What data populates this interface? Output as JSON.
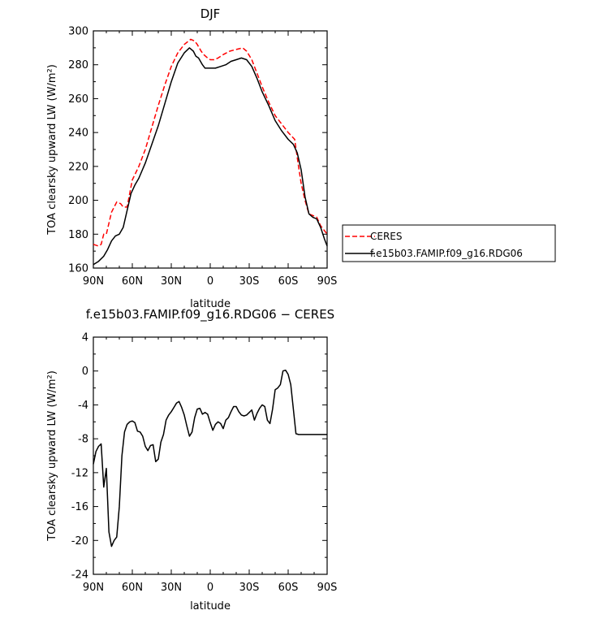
{
  "chart_data": [
    {
      "type": "line",
      "title": "DJF",
      "xlabel": "latitude",
      "ylabel": "TOA clearsky upward LW (W/m²)",
      "xlim": [
        -90,
        90
      ],
      "ylim": [
        160,
        300
      ],
      "x_ticks": [
        -90,
        -60,
        -30,
        0,
        30,
        60,
        90
      ],
      "x_tick_labels": [
        "90N",
        "60N",
        "30N",
        "0",
        "30S",
        "60S",
        "90S"
      ],
      "y_ticks": [
        160,
        180,
        200,
        220,
        240,
        260,
        280,
        300
      ],
      "y_tick_labels": [
        "160",
        "180",
        "200",
        "220",
        "240",
        "260",
        "280",
        "300"
      ],
      "legend": "right",
      "series": [
        {
          "name": "CERES",
          "color": "#ff0000",
          "style": "dashed",
          "x": [
            -90,
            -86,
            -84,
            -82,
            -80,
            -76,
            -72,
            -69,
            -67,
            -64,
            -62,
            -60,
            -55,
            -50,
            -45,
            -40,
            -35,
            -30,
            -25,
            -20,
            -15,
            -12,
            -10,
            -7,
            -5,
            -2,
            0,
            3,
            6,
            10,
            15,
            20,
            25,
            28,
            32,
            36,
            40,
            45,
            50,
            55,
            60,
            65,
            68,
            70,
            73,
            76,
            79,
            82,
            85,
            88,
            90
          ],
          "y": [
            174,
            173,
            174,
            180,
            180,
            193,
            199,
            198,
            196,
            196,
            204,
            212,
            220,
            230,
            243,
            256,
            268,
            279,
            287,
            292,
            295,
            294,
            292,
            288,
            286,
            284,
            283,
            283,
            284,
            286,
            288,
            289,
            290,
            288,
            283,
            275,
            267,
            258,
            250,
            245,
            240,
            236,
            220,
            210,
            200,
            192,
            191,
            190,
            185,
            182,
            180
          ]
        },
        {
          "name": "f.e15b03.FAMIP.f09_g16.RDG06",
          "color": "#000000",
          "style": "solid",
          "x": [
            -90,
            -86,
            -82,
            -79,
            -76,
            -73,
            -70,
            -67,
            -64,
            -61,
            -58,
            -55,
            -50,
            -45,
            -40,
            -35,
            -30,
            -25,
            -20,
            -16,
            -13,
            -11,
            -9,
            -6,
            -4,
            -2,
            0,
            4,
            8,
            12,
            16,
            20,
            24,
            28,
            32,
            36,
            40,
            45,
            50,
            55,
            60,
            64,
            67,
            70,
            73,
            76,
            79,
            82,
            85,
            88,
            90
          ],
          "y": [
            162,
            164,
            167,
            171,
            176,
            179,
            180,
            184,
            194,
            204,
            209,
            213,
            222,
            233,
            244,
            257,
            270,
            281,
            287,
            290,
            288,
            285,
            284,
            280,
            278,
            278,
            278,
            278,
            279,
            280,
            282,
            283,
            284,
            283,
            279,
            272,
            264,
            256,
            247,
            241,
            236,
            233,
            228,
            218,
            202,
            192,
            190,
            189,
            184,
            177,
            173
          ]
        }
      ]
    },
    {
      "type": "line",
      "title": "f.e15b03.FAMIP.f09_g16.RDG06 − CERES",
      "xlabel": "latitude",
      "ylabel": "TOA clearsky upward LW (W/m²)",
      "xlim": [
        -90,
        90
      ],
      "ylim": [
        -24,
        4
      ],
      "x_ticks": [
        -90,
        -60,
        -30,
        0,
        30,
        60,
        90
      ],
      "x_tick_labels": [
        "90N",
        "60N",
        "30N",
        "0",
        "30S",
        "60S",
        "90S"
      ],
      "y_ticks": [
        -24,
        -20,
        -16,
        -12,
        -8,
        -4,
        0,
        4
      ],
      "y_tick_labels": [
        "-24",
        "-20",
        "-16",
        "-12",
        "-8",
        "-4",
        "0",
        "4"
      ],
      "series": [
        {
          "name": "f.e15b03.FAMIP.f09_g16.RDG06 − CERES",
          "color": "#000000",
          "style": "solid",
          "x": [
            -90,
            -88,
            -86,
            -84,
            -82,
            -80,
            -78,
            -76,
            -74,
            -72,
            -70,
            -68,
            -66,
            -64,
            -62,
            -60,
            -58,
            -56,
            -54,
            -52,
            -50,
            -48,
            -46,
            -44,
            -42,
            -40,
            -38,
            -36,
            -34,
            -32,
            -30,
            -28,
            -26,
            -24,
            -22,
            -20,
            -18,
            -16,
            -14,
            -12,
            -10,
            -8,
            -6,
            -4,
            -2,
            0,
            2,
            4,
            6,
            8,
            10,
            12,
            14,
            16,
            18,
            20,
            22,
            24,
            26,
            28,
            30,
            32,
            34,
            36,
            38,
            40,
            42,
            44,
            46,
            48,
            50,
            52,
            54,
            56,
            58,
            60,
            62,
            64,
            66,
            68,
            70,
            72,
            74,
            76,
            78,
            80,
            82,
            84,
            86,
            88,
            90
          ],
          "y": [
            -11.0,
            -9.5,
            -8.9,
            -8.6,
            -13.7,
            -11.5,
            -19.0,
            -20.7,
            -20.0,
            -19.6,
            -16.0,
            -10.0,
            -7.2,
            -6.3,
            -6.0,
            -5.9,
            -6.1,
            -7.1,
            -7.2,
            -7.7,
            -8.9,
            -9.4,
            -8.8,
            -8.7,
            -10.7,
            -10.4,
            -8.4,
            -7.5,
            -5.8,
            -5.2,
            -4.8,
            -4.3,
            -3.8,
            -3.6,
            -4.3,
            -5.2,
            -6.5,
            -7.7,
            -7.2,
            -5.5,
            -4.5,
            -4.4,
            -5.1,
            -4.9,
            -5.1,
            -6.1,
            -7.0,
            -6.3,
            -6.0,
            -6.2,
            -6.8,
            -5.8,
            -5.5,
            -4.8,
            -4.2,
            -4.2,
            -4.8,
            -5.2,
            -5.3,
            -5.2,
            -4.9,
            -4.6,
            -5.8,
            -5.0,
            -4.4,
            -4.0,
            -4.2,
            -5.8,
            -6.2,
            -4.5,
            -2.2,
            -2.0,
            -1.6,
            0.0,
            0.1,
            -0.4,
            -1.6,
            -4.5,
            -7.4,
            -7.5,
            -7.5,
            -7.5,
            -7.5,
            -7.5,
            -7.5,
            -7.5,
            -7.5,
            -7.5,
            -7.5,
            -7.5,
            -7.5
          ]
        }
      ]
    }
  ]
}
